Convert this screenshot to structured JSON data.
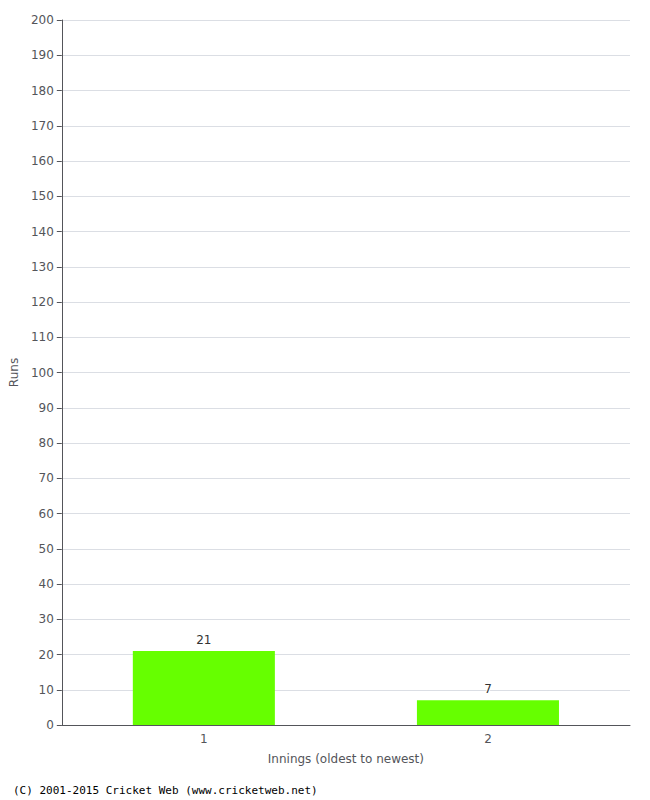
{
  "chart_data": {
    "type": "bar",
    "xlabel": "Innings (oldest to newest)",
    "ylabel": "Runs",
    "categories": [
      1,
      2
    ],
    "values": [
      21,
      7
    ],
    "color": "#66ff00",
    "ylim": [
      0,
      200
    ],
    "yticks": [
      0,
      10,
      20,
      30,
      40,
      50,
      60,
      70,
      80,
      90,
      100,
      110,
      120,
      130,
      140,
      150,
      160,
      170,
      180,
      190,
      200
    ],
    "grid": true,
    "data_labels": true,
    "annotations": [
      "(C) 2001-2015 Cricket Web (www.cricketweb.net)"
    ]
  }
}
